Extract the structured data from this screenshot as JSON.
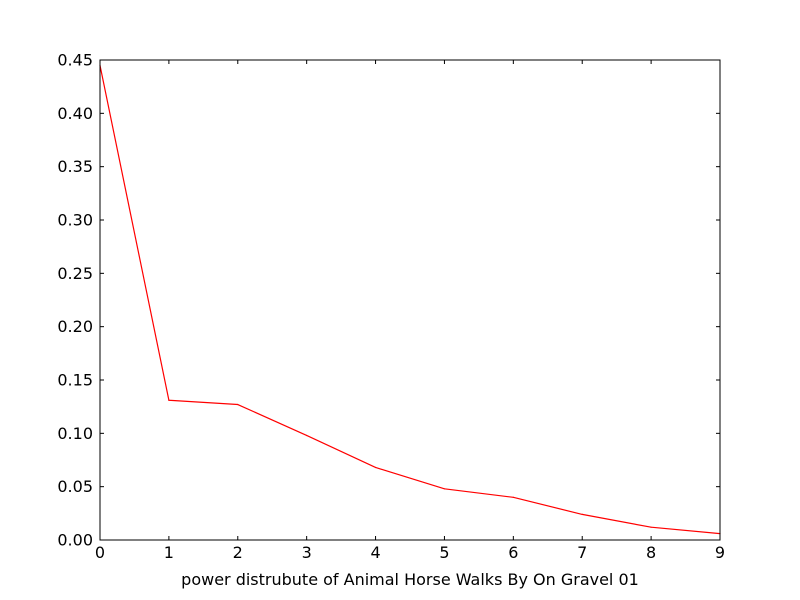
{
  "chart_data": {
    "type": "line",
    "title": "",
    "xlabel": "power distrubute of Animal Horse Walks By On Gravel 01",
    "ylabel": "",
    "x": [
      0,
      1,
      2,
      3,
      4,
      5,
      6,
      7,
      8,
      9
    ],
    "series": [
      {
        "values": [
          0.445,
          0.131,
          0.127,
          0.098,
          0.068,
          0.048,
          0.04,
          0.024,
          0.012,
          0.006
        ],
        "color": "#ff0000"
      }
    ],
    "xlim": [
      0,
      9
    ],
    "ylim": [
      0,
      0.45
    ],
    "xticks": [
      "0",
      "1",
      "2",
      "3",
      "4",
      "5",
      "6",
      "7",
      "8",
      "9"
    ],
    "yticks": [
      "0.00",
      "0.05",
      "0.10",
      "0.15",
      "0.20",
      "0.25",
      "0.30",
      "0.35",
      "0.40",
      "0.45"
    ],
    "grid": false,
    "legend": "none",
    "frame_color": "#000000",
    "background": "#ffffff"
  }
}
